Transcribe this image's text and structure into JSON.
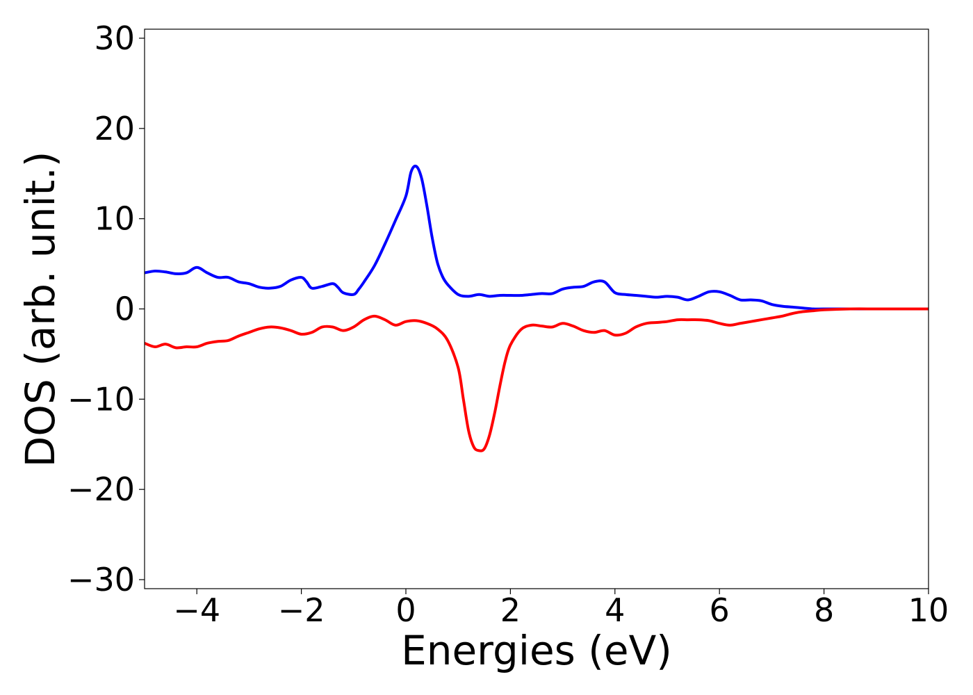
{
  "chart_data": {
    "type": "line",
    "title": "",
    "xlabel": "Energies (eV)",
    "ylabel": "DOS (arb. unit.)",
    "xlim": [
      -5,
      10
    ],
    "ylim": [
      -31,
      31
    ],
    "x_ticks": [
      -4,
      -2,
      0,
      2,
      4,
      6,
      8,
      10
    ],
    "x_tick_labels": [
      "−4",
      "−2",
      "0",
      "2",
      "4",
      "6",
      "8",
      "10"
    ],
    "y_ticks": [
      -30,
      -20,
      -10,
      0,
      10,
      20,
      30
    ],
    "y_tick_labels": [
      "−30",
      "−20",
      "−10",
      "0",
      "10",
      "20",
      "30"
    ],
    "grid": false,
    "legend": "none",
    "series": [
      {
        "color": "#0000ff",
        "x": [
          -5.0,
          -4.8,
          -4.6,
          -4.4,
          -4.2,
          -4.0,
          -3.8,
          -3.6,
          -3.4,
          -3.2,
          -3.0,
          -2.8,
          -2.6,
          -2.4,
          -2.2,
          -2.0,
          -1.9,
          -1.8,
          -1.6,
          -1.4,
          -1.3,
          -1.2,
          -1.0,
          -0.9,
          -0.8,
          -0.6,
          -0.4,
          -0.2,
          0.0,
          0.1,
          0.2,
          0.3,
          0.4,
          0.5,
          0.6,
          0.7,
          0.8,
          1.0,
          1.2,
          1.4,
          1.6,
          1.8,
          2.0,
          2.2,
          2.4,
          2.6,
          2.8,
          3.0,
          3.2,
          3.4,
          3.6,
          3.8,
          4.0,
          4.2,
          4.4,
          4.6,
          4.8,
          5.0,
          5.2,
          5.4,
          5.6,
          5.8,
          6.0,
          6.2,
          6.4,
          6.6,
          6.8,
          7.0,
          7.2,
          7.4,
          7.6,
          7.8,
          8.0,
          8.5,
          9.0,
          9.5,
          10.0
        ],
        "y": [
          4.0,
          4.2,
          4.1,
          3.9,
          4.0,
          4.6,
          4.0,
          3.5,
          3.5,
          3.0,
          2.8,
          2.4,
          2.3,
          2.5,
          3.2,
          3.5,
          3.0,
          2.3,
          2.5,
          2.8,
          2.4,
          1.8,
          1.6,
          2.2,
          3.0,
          4.8,
          7.2,
          9.8,
          12.5,
          15.2,
          15.8,
          14.5,
          11.5,
          8.0,
          5.2,
          3.6,
          2.7,
          1.6,
          1.4,
          1.6,
          1.4,
          1.5,
          1.5,
          1.5,
          1.6,
          1.7,
          1.7,
          2.2,
          2.4,
          2.5,
          3.0,
          3.0,
          1.8,
          1.6,
          1.5,
          1.4,
          1.3,
          1.4,
          1.3,
          1.0,
          1.4,
          1.9,
          1.9,
          1.5,
          1.0,
          1.0,
          0.9,
          0.5,
          0.3,
          0.2,
          0.1,
          0.0,
          0.0,
          0.0,
          0.0,
          0.0,
          0.0
        ]
      },
      {
        "color": "#ff0000",
        "x": [
          -5.0,
          -4.8,
          -4.6,
          -4.4,
          -4.2,
          -4.0,
          -3.8,
          -3.6,
          -3.4,
          -3.2,
          -3.0,
          -2.8,
          -2.6,
          -2.4,
          -2.2,
          -2.0,
          -1.8,
          -1.6,
          -1.4,
          -1.2,
          -1.0,
          -0.8,
          -0.6,
          -0.4,
          -0.2,
          0.0,
          0.2,
          0.4,
          0.6,
          0.8,
          1.0,
          1.1,
          1.2,
          1.3,
          1.4,
          1.5,
          1.6,
          1.7,
          1.8,
          1.9,
          2.0,
          2.2,
          2.4,
          2.6,
          2.8,
          3.0,
          3.2,
          3.4,
          3.6,
          3.8,
          4.0,
          4.2,
          4.4,
          4.6,
          4.8,
          5.0,
          5.2,
          5.4,
          5.6,
          5.8,
          6.0,
          6.2,
          6.4,
          6.6,
          6.8,
          7.0,
          7.2,
          7.4,
          7.6,
          7.8,
          8.0,
          8.5,
          9.0,
          9.5,
          10.0
        ],
        "y": [
          -3.8,
          -4.2,
          -3.9,
          -4.3,
          -4.2,
          -4.2,
          -3.8,
          -3.6,
          -3.5,
          -3.0,
          -2.6,
          -2.2,
          -2.0,
          -2.1,
          -2.4,
          -2.8,
          -2.6,
          -2.0,
          -2.0,
          -2.4,
          -2.0,
          -1.2,
          -0.8,
          -1.2,
          -1.8,
          -1.4,
          -1.3,
          -1.6,
          -2.2,
          -3.5,
          -6.5,
          -10.0,
          -13.5,
          -15.3,
          -15.7,
          -15.5,
          -14.0,
          -11.5,
          -8.5,
          -5.8,
          -4.0,
          -2.3,
          -1.8,
          -1.9,
          -2.0,
          -1.6,
          -1.9,
          -2.4,
          -2.6,
          -2.4,
          -2.9,
          -2.7,
          -2.0,
          -1.6,
          -1.5,
          -1.4,
          -1.2,
          -1.2,
          -1.2,
          -1.3,
          -1.6,
          -1.8,
          -1.6,
          -1.4,
          -1.2,
          -1.0,
          -0.8,
          -0.5,
          -0.3,
          -0.2,
          -0.1,
          0.0,
          0.0,
          0.0,
          0.0
        ]
      }
    ]
  }
}
